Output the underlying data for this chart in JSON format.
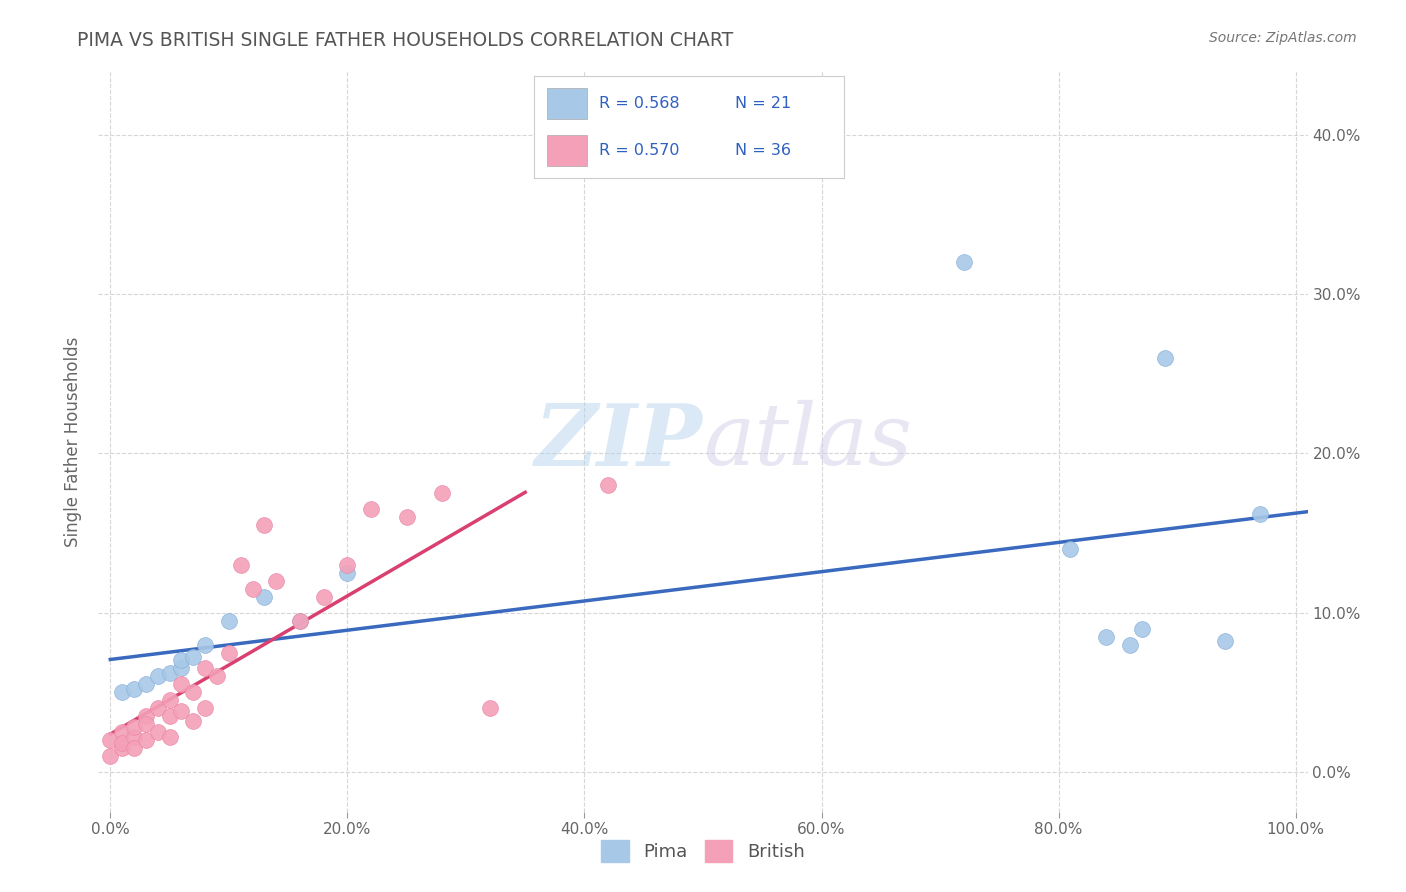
{
  "title": "PIMA VS BRITISH SINGLE FATHER HOUSEHOLDS CORRELATION CHART",
  "source": "Source: ZipAtlas.com",
  "ylabel": "Single Father Households",
  "watermark_zip": "ZIP",
  "watermark_atlas": "atlas",
  "pima_color": "#a8c8e8",
  "british_color": "#f4a0b8",
  "trend_pima_color": "#3a6abf",
  "trend_british_color": "#d94070",
  "dashed_line_color": "#bbbbbb",
  "background": "#ffffff",
  "grid_color": "#cccccc",
  "title_color": "#555555",
  "source_color": "#777777",
  "legend_text_color": "#3060c0",
  "legend_r_pima": "R = 0.568",
  "legend_n_pima": "N = 21",
  "legend_r_brit": "R = 0.570",
  "legend_n_brit": "N = 36",
  "pima_x": [
    0.01,
    0.02,
    0.03,
    0.04,
    0.05,
    0.06,
    0.06,
    0.07,
    0.08,
    0.1,
    0.13,
    0.16,
    0.2,
    0.72,
    0.81,
    0.84,
    0.86,
    0.87,
    0.89,
    0.94,
    0.97
  ],
  "pima_y": [
    0.05,
    0.052,
    0.055,
    0.06,
    0.062,
    0.065,
    0.07,
    0.072,
    0.08,
    0.095,
    0.11,
    0.095,
    0.125,
    0.32,
    0.14,
    0.085,
    0.08,
    0.09,
    0.26,
    0.082,
    0.162
  ],
  "british_x": [
    0.0,
    0.0,
    0.01,
    0.01,
    0.01,
    0.02,
    0.02,
    0.02,
    0.03,
    0.03,
    0.03,
    0.04,
    0.04,
    0.05,
    0.05,
    0.05,
    0.06,
    0.06,
    0.07,
    0.07,
    0.08,
    0.08,
    0.09,
    0.1,
    0.11,
    0.12,
    0.13,
    0.14,
    0.16,
    0.18,
    0.2,
    0.22,
    0.25,
    0.28,
    0.32,
    0.42
  ],
  "british_y": [
    0.01,
    0.02,
    0.015,
    0.025,
    0.018,
    0.022,
    0.028,
    0.015,
    0.035,
    0.03,
    0.02,
    0.04,
    0.025,
    0.045,
    0.035,
    0.022,
    0.055,
    0.038,
    0.05,
    0.032,
    0.065,
    0.04,
    0.06,
    0.075,
    0.13,
    0.115,
    0.155,
    0.12,
    0.095,
    0.11,
    0.13,
    0.165,
    0.16,
    0.175,
    0.04,
    0.18
  ],
  "xlim": [
    -0.01,
    1.01
  ],
  "ylim": [
    -0.025,
    0.44
  ],
  "x_ticks": [
    0.0,
    0.2,
    0.4,
    0.6,
    0.8,
    1.0
  ],
  "y_ticks": [
    0.0,
    0.1,
    0.2,
    0.3,
    0.4
  ]
}
